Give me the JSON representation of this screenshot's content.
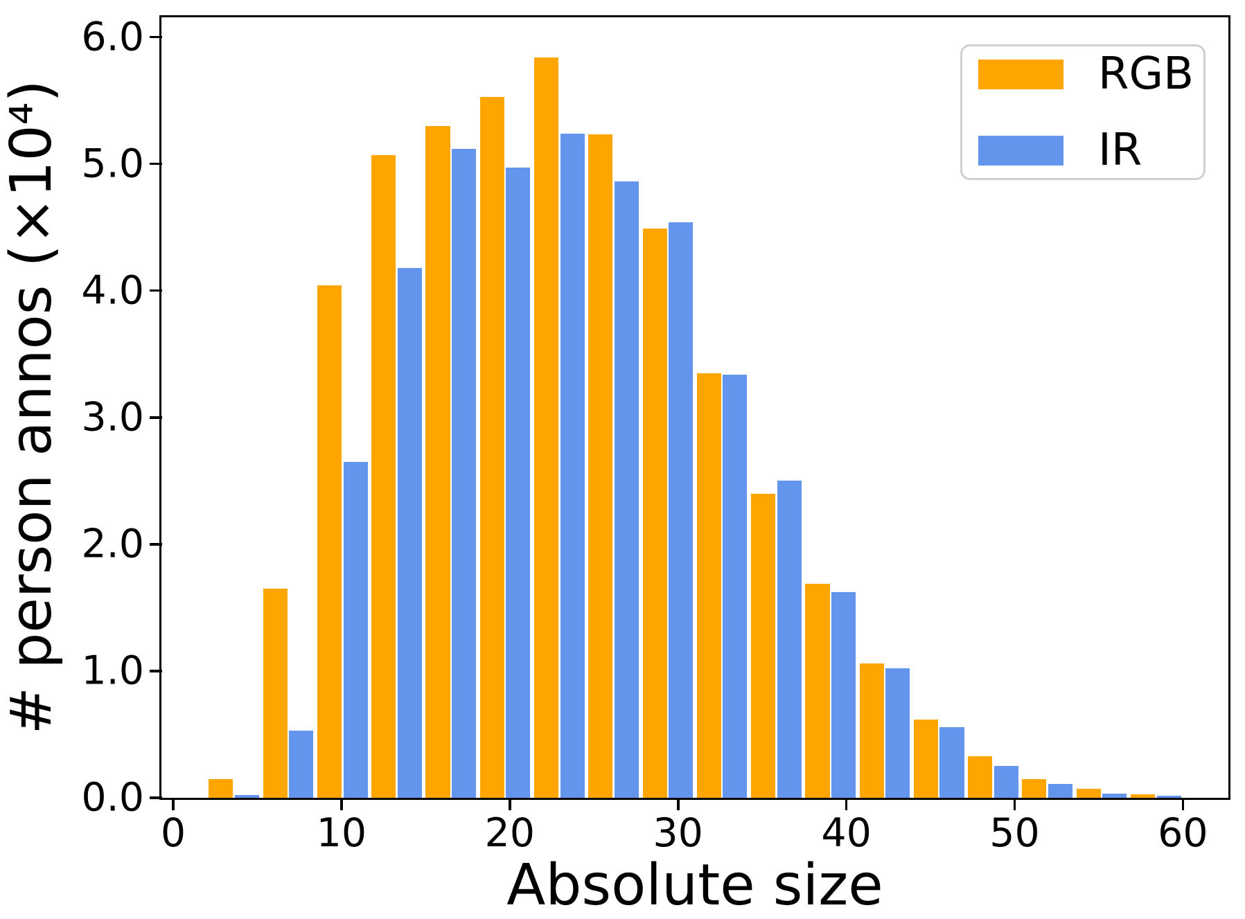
{
  "figure": {
    "xlabel": "Absolute size",
    "ylabel": "# person annos (×10⁴)"
  },
  "legend": {
    "position": "upper right",
    "items": [
      {
        "label": "RGB",
        "color": "#FFA500"
      },
      {
        "label": "IR",
        "color": "#6495ED"
      }
    ]
  },
  "chart_data": {
    "type": "bar",
    "title": "",
    "xlabel": "Absolute size",
    "ylabel": "# person annos (×10⁴)",
    "legend_position": "upper right",
    "grid": false,
    "background": "#ffffff",
    "xlim": [
      -0.66,
      62.7
    ],
    "ylim": [
      0,
      6.15
    ],
    "x_ticks": [
      0,
      10,
      20,
      30,
      40,
      50,
      60
    ],
    "y_ticks": [
      0,
      1,
      2,
      3,
      4,
      5,
      6
    ],
    "y_tick_labels": [
      "0.0",
      "1.0",
      "2.0",
      "3.0",
      "4.0",
      "5.0",
      "6.0"
    ],
    "bin_centers": [
      3.61,
      6.83,
      10.06,
      13.28,
      16.5,
      19.72,
      22.94,
      26.17,
      29.39,
      32.61,
      35.83,
      39.06,
      42.28,
      45.5,
      48.72,
      51.94,
      55.17,
      58.39
    ],
    "bar_width": 1.45,
    "bar_offset": 0.775,
    "series": [
      {
        "name": "RGB",
        "color": "#FFA500",
        "values": [
          0.15,
          1.65,
          4.04,
          5.07,
          5.3,
          5.53,
          5.84,
          5.23,
          4.49,
          3.35,
          2.4,
          1.69,
          1.06,
          0.62,
          0.33,
          0.15,
          0.07,
          0.03
        ]
      },
      {
        "name": "IR",
        "color": "#6495ED",
        "values": [
          0.02,
          0.53,
          2.65,
          4.18,
          5.12,
          4.97,
          5.24,
          4.86,
          4.54,
          3.34,
          2.5,
          1.62,
          1.02,
          0.56,
          0.25,
          0.11,
          0.035,
          0.015
        ]
      }
    ]
  }
}
